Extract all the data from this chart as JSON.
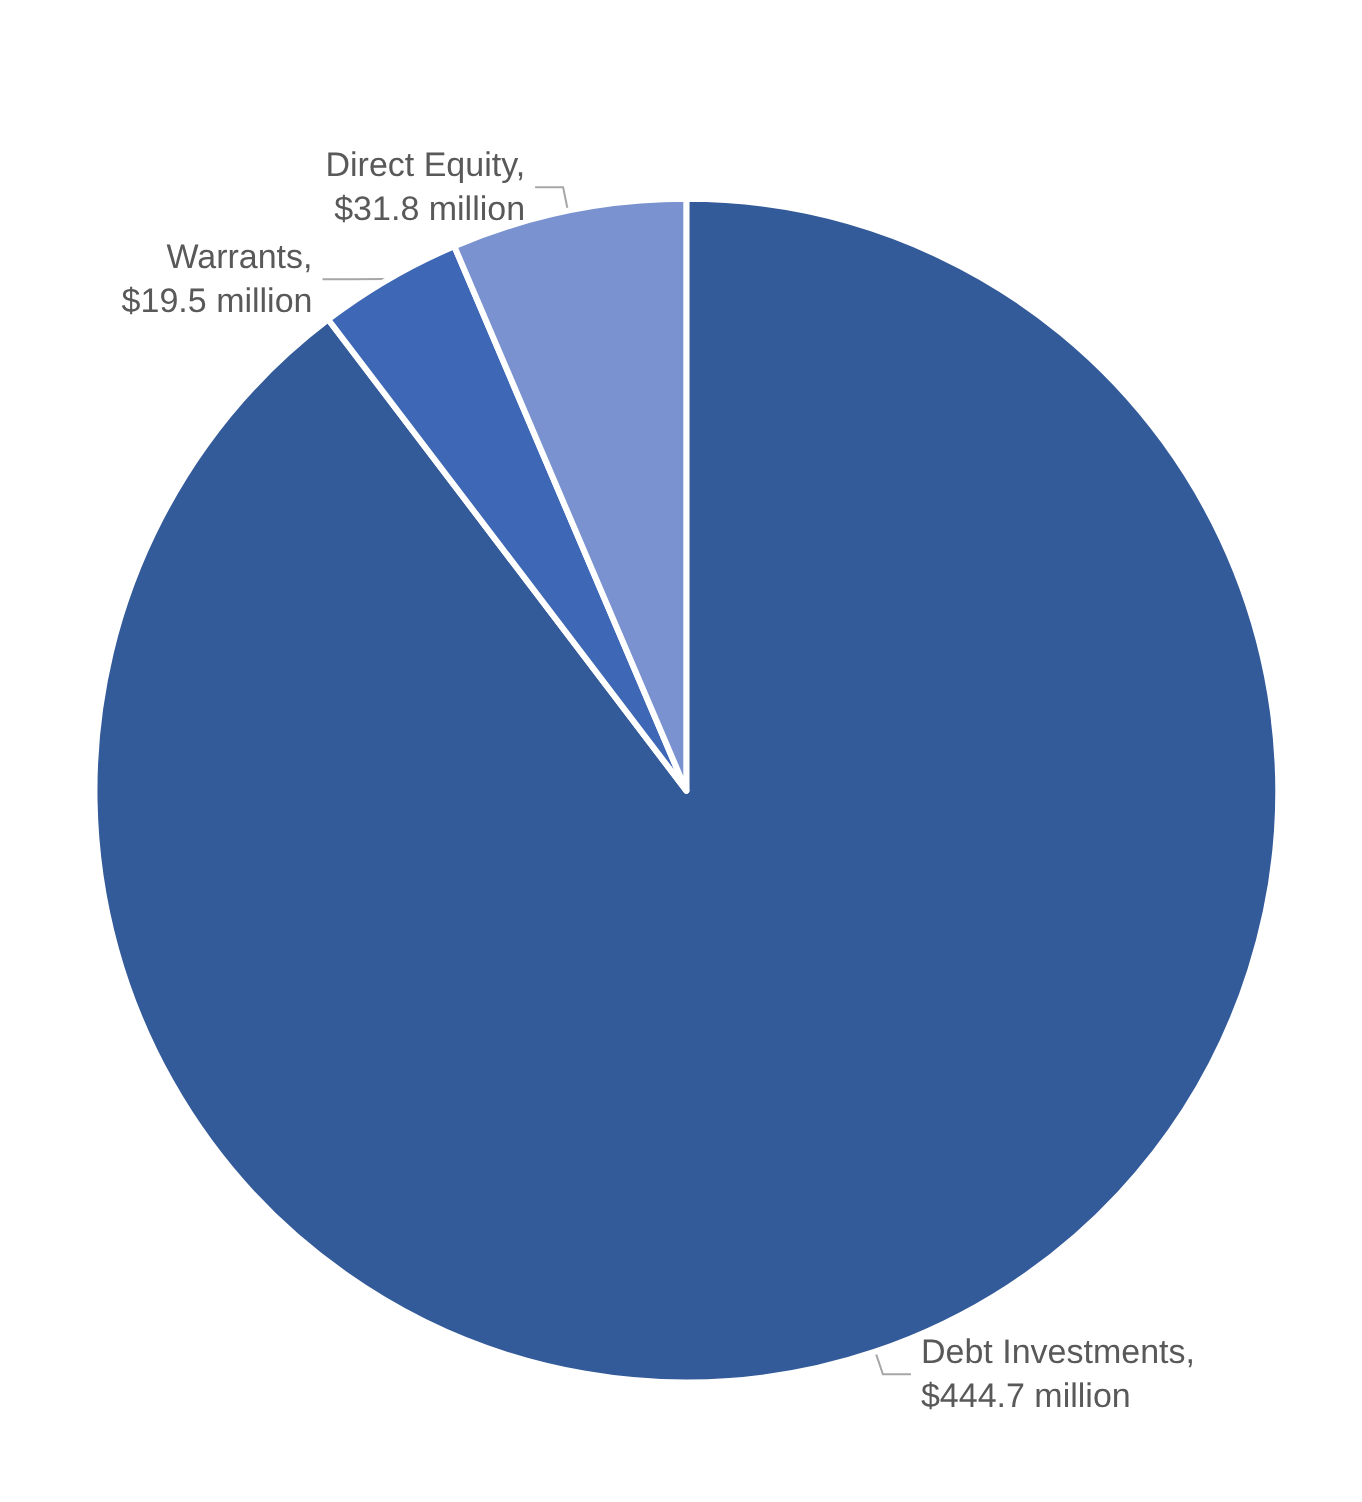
{
  "chart_data": {
    "type": "pie",
    "categories": [
      "Debt Investments",
      "Warrants",
      "Direct Equity"
    ],
    "values": [
      444.7,
      19.5,
      31.8
    ],
    "colors": [
      "#335a99",
      "#3e68b5",
      "#7a93d0"
    ],
    "value_labels": [
      ",\n$444.7 million",
      ",\n$19.5 million",
      ",\n$31.8 million"
    ],
    "legend": false
  }
}
